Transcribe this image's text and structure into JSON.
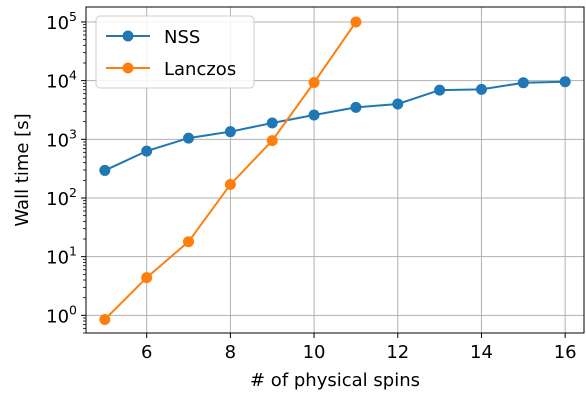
{
  "chart_data": {
    "type": "line",
    "xlabel": "# of physical spins",
    "ylabel": "Wall time [s]",
    "xlim": [
      4.55,
      16.45
    ],
    "ylim": [
      0.5,
      180000
    ],
    "yscale": "log",
    "grid": true,
    "legend_position": "top-left",
    "x_ticks": [
      6,
      8,
      10,
      12,
      14,
      16
    ],
    "y_ticks": [
      {
        "value": 1,
        "base": "10",
        "exp": "0"
      },
      {
        "value": 10,
        "base": "10",
        "exp": "1"
      },
      {
        "value": 100,
        "base": "10",
        "exp": "2"
      },
      {
        "value": 1000,
        "base": "10",
        "exp": "3"
      },
      {
        "value": 10000,
        "base": "10",
        "exp": "4"
      },
      {
        "value": 100000,
        "base": "10",
        "exp": "5"
      }
    ],
    "series": [
      {
        "name": "NSS",
        "color": "#1f77b4",
        "x": [
          5,
          6,
          7,
          8,
          9,
          10,
          11,
          12,
          13,
          14,
          15,
          16
        ],
        "y": [
          295,
          630,
          1050,
          1350,
          1900,
          2600,
          3500,
          4000,
          6900,
          7100,
          9200,
          9600
        ]
      },
      {
        "name": "Lanczos",
        "color": "#ff7f0e",
        "x": [
          5,
          6,
          7,
          8,
          9,
          10,
          11
        ],
        "y": [
          0.85,
          4.4,
          18,
          170,
          950,
          9300,
          100000
        ]
      }
    ]
  }
}
